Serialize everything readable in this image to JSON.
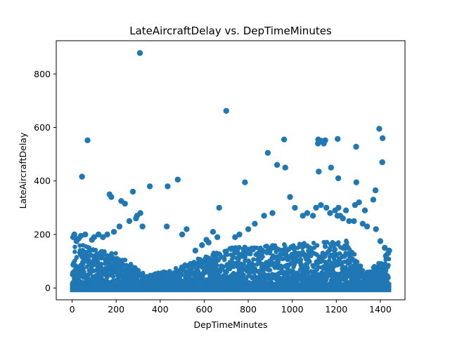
{
  "chart_data": {
    "type": "scatter",
    "title": "LateAircraftDelay vs. DepTimeMinutes",
    "xlabel": "DepTimeMinutes",
    "ylabel": "LateAircraftDelay",
    "xlim": [
      -72,
      1512
    ],
    "ylim": [
      -44,
      924
    ],
    "xticks": [
      0,
      200,
      400,
      600,
      800,
      1000,
      1200,
      1400
    ],
    "yticks": [
      0,
      200,
      400,
      600,
      800
    ],
    "grid": false,
    "legend": "none",
    "marker_color": "#1f77b4",
    "series": [
      {
        "x": [
          308,
          700,
          70,
          45,
          1395,
          1410,
          1118,
          1131,
          1150,
          1206,
          963,
          1290,
          889,
          1378,
          1409,
          931,
          968,
          480,
          276,
          353,
          434,
          1117,
          1143,
          1176,
          1209,
          1291,
          990,
          1368,
          1120,
          785,
          1285,
          170,
          178,
          223,
          240,
          1210,
          1195,
          1218,
          1303,
          1330,
          1155,
          1172,
          1244,
          1048,
          1012,
          668,
          1068,
          1094,
          1108,
          1130,
          1205,
          1230,
          1258,
          1280,
          1320,
          1340,
          1380,
          910,
          872,
          830,
          800,
          760,
          740,
          310,
          295,
          290,
          260,
          215,
          190,
          160,
          140,
          120,
          100,
          90,
          60,
          40,
          30,
          20,
          10,
          5,
          520,
          500,
          430,
          320,
          660,
          640,
          620,
          610,
          590,
          560,
          1400,
          1420,
          1440,
          1435,
          1425
        ],
        "y": [
          878,
          662,
          552,
          416,
          595,
          560,
          555,
          550,
          552,
          557,
          555,
          528,
          505,
          365,
          470,
          460,
          450,
          405,
          360,
          380,
          380,
          540,
          540,
          450,
          410,
          395,
          340,
          330,
          435,
          395,
          310,
          350,
          340,
          325,
          315,
          300,
          290,
          270,
          320,
          290,
          300,
          280,
          290,
          270,
          300,
          300,
          280,
          270,
          300,
          310,
          270,
          260,
          250,
          250,
          240,
          230,
          220,
          280,
          270,
          240,
          220,
          200,
          190,
          280,
          270,
          260,
          250,
          230,
          210,
          200,
          190,
          200,
          190,
          180,
          200,
          195,
          185,
          175,
          200,
          190,
          220,
          200,
          230,
          230,
          190,
          210,
          170,
          180,
          160,
          140,
          175,
          150,
          140,
          130,
          120
        ]
      }
    ]
  }
}
